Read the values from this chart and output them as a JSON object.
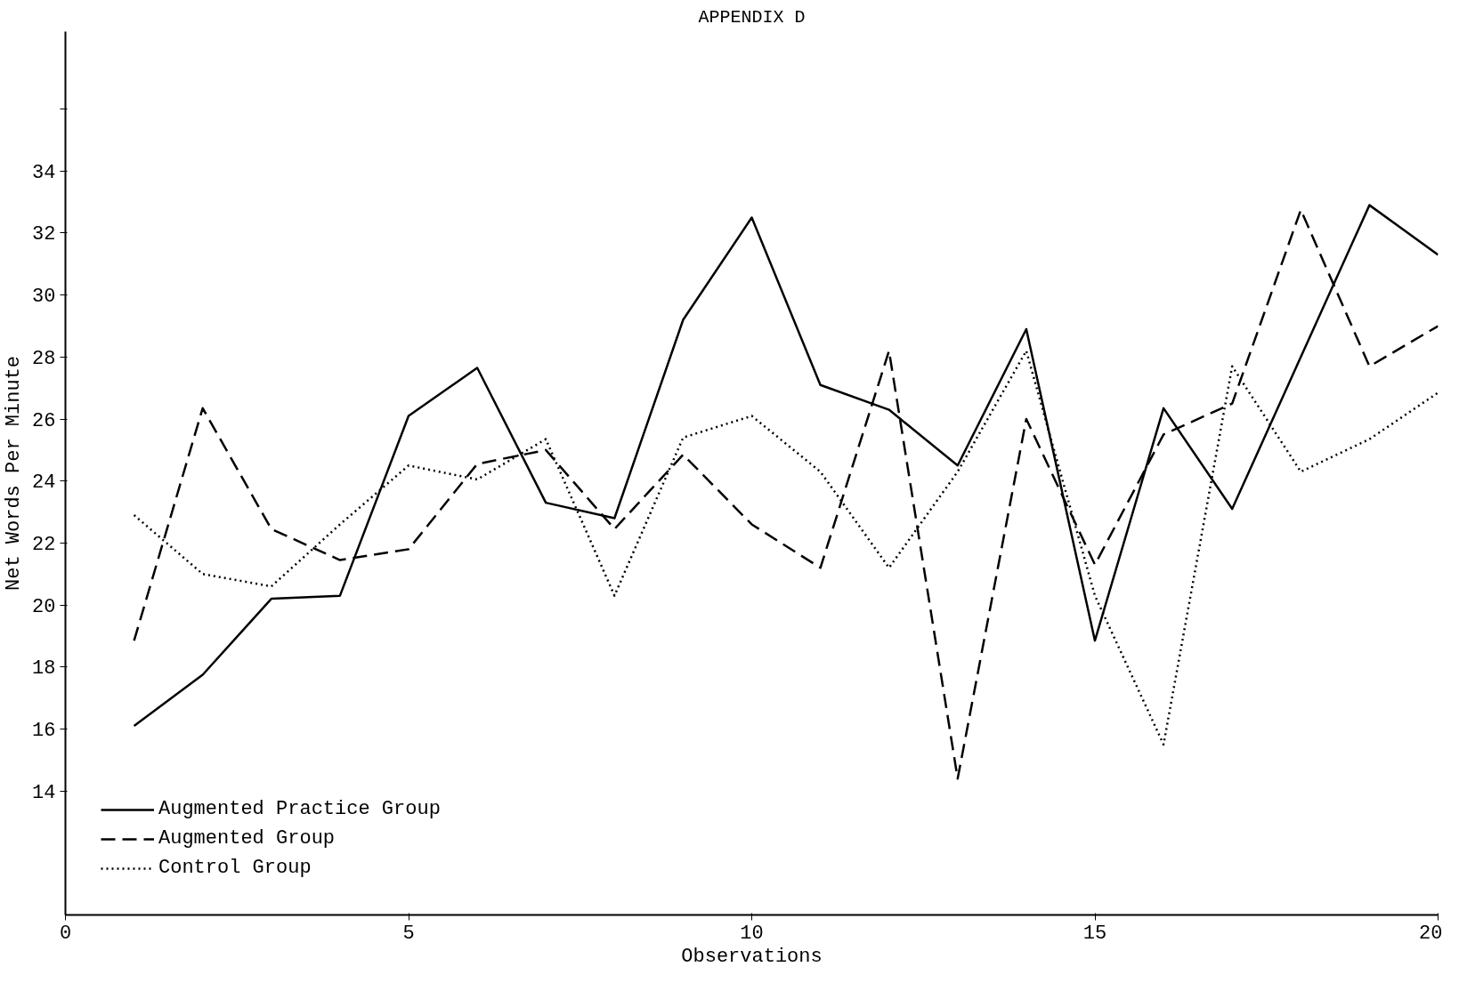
{
  "chart_data": {
    "type": "line",
    "title": "APPENDIX D",
    "xlabel": "Observations",
    "ylabel": "Net Words Per Minute",
    "x": [
      1,
      2,
      3,
      4,
      5,
      6,
      7,
      8,
      9,
      10,
      11,
      12,
      13,
      14,
      15,
      16,
      17,
      18,
      19,
      20
    ],
    "xlim": [
      0,
      20
    ],
    "xticks": [
      0,
      5,
      10,
      15,
      20
    ],
    "ylim": [
      10,
      38.5
    ],
    "yticks": [
      14,
      16,
      18,
      20,
      22,
      24,
      26,
      28,
      30,
      32,
      34,
      {
        "value": 36,
        "label": null
      }
    ],
    "grid": false,
    "legend": "bottom left",
    "marker": "none",
    "series": [
      {
        "name": "Augmented Practice Group",
        "color": "#000000",
        "line_style": "solid",
        "values": [
          16.1,
          17.75,
          20.2,
          20.3,
          26.1,
          27.65,
          23.3,
          22.8,
          29.2,
          32.5,
          27.1,
          26.3,
          24.5,
          28.9,
          18.85,
          26.35,
          23.1,
          28.0,
          32.9,
          31.3
        ]
      },
      {
        "name": "Augmented Group",
        "color": "#000000",
        "line_style": "dashed",
        "values": [
          18.85,
          26.35,
          22.45,
          21.45,
          21.8,
          24.55,
          25.0,
          22.45,
          24.85,
          22.6,
          21.2,
          28.2,
          14.4,
          26.0,
          21.3,
          25.5,
          26.5,
          32.75,
          27.7,
          29.0
        ]
      },
      {
        "name": "Control Group",
        "color": "#000000",
        "line_style": "dotted",
        "values": [
          22.9,
          21.0,
          20.6,
          22.6,
          24.5,
          24.05,
          25.35,
          20.3,
          25.4,
          26.1,
          24.3,
          21.2,
          24.3,
          28.2,
          20.3,
          15.5,
          27.7,
          24.3,
          25.35,
          26.85
        ]
      }
    ]
  }
}
